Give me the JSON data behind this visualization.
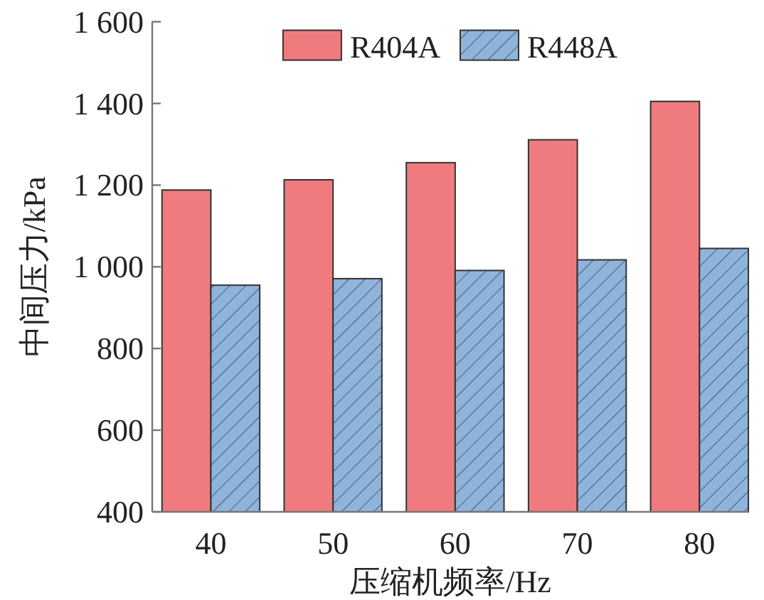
{
  "chart_data": {
    "type": "bar",
    "categories": [
      "40",
      "50",
      "60",
      "70",
      "80"
    ],
    "xlabel": "压缩机频率/Hz",
    "ylabel": "中间压力/kPa",
    "series": [
      {
        "name": "R404A",
        "color": "#f07b7e",
        "values": [
          1188,
          1213,
          1255,
          1311,
          1405
        ]
      },
      {
        "name": "R448A",
        "color": "#8fb4dc",
        "values": [
          955,
          971,
          991,
          1017,
          1045
        ]
      }
    ],
    "ylim": [
      400,
      1600
    ],
    "yticks": [
      {
        "value": 400,
        "label": "400"
      },
      {
        "value": 600,
        "label": "600"
      },
      {
        "value": 800,
        "label": "800"
      },
      {
        "value": 1000,
        "label": "1 000"
      },
      {
        "value": 1200,
        "label": "1 200"
      },
      {
        "value": 1400,
        "label": "1 400"
      },
      {
        "value": 1600,
        "label": "1 600"
      }
    ],
    "legend": "top"
  }
}
